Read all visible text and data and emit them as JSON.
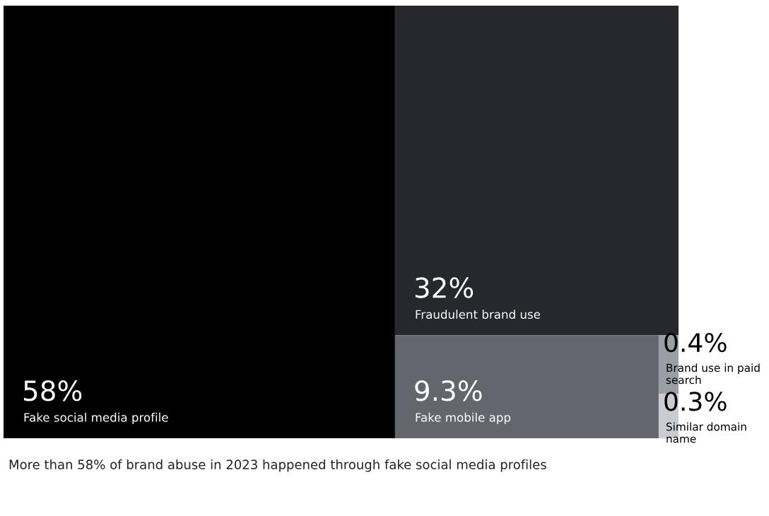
{
  "chart_data": {
    "type": "other",
    "categories": [
      "Fake social media profile",
      "Fraudulent brand use",
      "Fake mobile app",
      "Brand use in paid search",
      "Similar domain name"
    ],
    "values": [
      58,
      32,
      9.3,
      0.4,
      0.3
    ],
    "value_labels": [
      "58%",
      "32%",
      "9.3%",
      "0.4%",
      "0.3%"
    ],
    "colors": [
      "#000000",
      "#26282d",
      "#63666c",
      "#9a9ea5",
      "#c9ccd1"
    ],
    "annotations": [
      "More than 58% of brand abuse in 2023 happened through fake social media profiles"
    ]
  }
}
